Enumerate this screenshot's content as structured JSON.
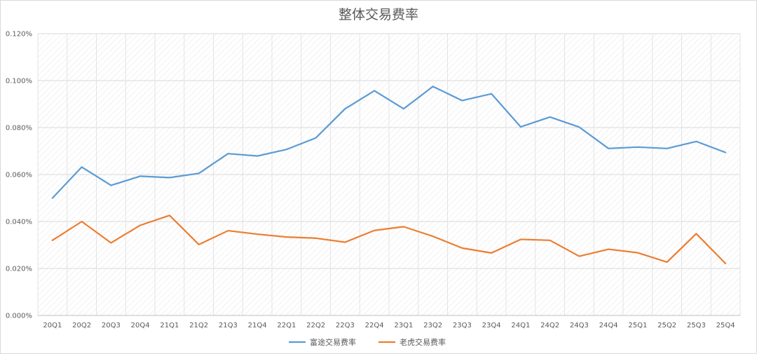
{
  "chart_data": {
    "type": "line",
    "title": "整体交易费率",
    "xlabel": "",
    "ylabel": "",
    "categories": [
      "20Q1",
      "20Q2",
      "20Q3",
      "20Q4",
      "21Q1",
      "21Q2",
      "21Q3",
      "21Q4",
      "22Q1",
      "22Q2",
      "22Q3",
      "22Q4",
      "23Q1",
      "23Q2",
      "23Q3",
      "23Q4",
      "24Q1",
      "24Q2",
      "24Q3",
      "24Q4",
      "25Q1",
      "25Q2",
      "25Q3",
      "25Q4"
    ],
    "ylim": [
      0,
      0.12
    ],
    "yticks": [
      "0.000%",
      "0.020%",
      "0.040%",
      "0.060%",
      "0.080%",
      "0.100%",
      "0.120%"
    ],
    "grid": true,
    "legend_position": "bottom",
    "series": [
      {
        "name": "富途交易费率",
        "color": "#5b9bd5",
        "values": [
          0.05,
          0.0632,
          0.0554,
          0.0593,
          0.0587,
          0.0605,
          0.0689,
          0.0679,
          0.0707,
          0.0756,
          0.088,
          0.0957,
          0.088,
          0.0975,
          0.0915,
          0.0944,
          0.0803,
          0.0845,
          0.0802,
          0.0711,
          0.0717,
          0.0711,
          0.0741,
          0.0694
        ]
      },
      {
        "name": "老虎交易费率",
        "color": "#ed7d31",
        "values": [
          0.032,
          0.04,
          0.0309,
          0.0384,
          0.0426,
          0.0302,
          0.0361,
          0.0346,
          0.0334,
          0.0329,
          0.0312,
          0.0362,
          0.0378,
          0.0337,
          0.0287,
          0.0266,
          0.0324,
          0.032,
          0.0252,
          0.0282,
          0.0267,
          0.0227,
          0.0348,
          0.0221
        ]
      }
    ]
  }
}
